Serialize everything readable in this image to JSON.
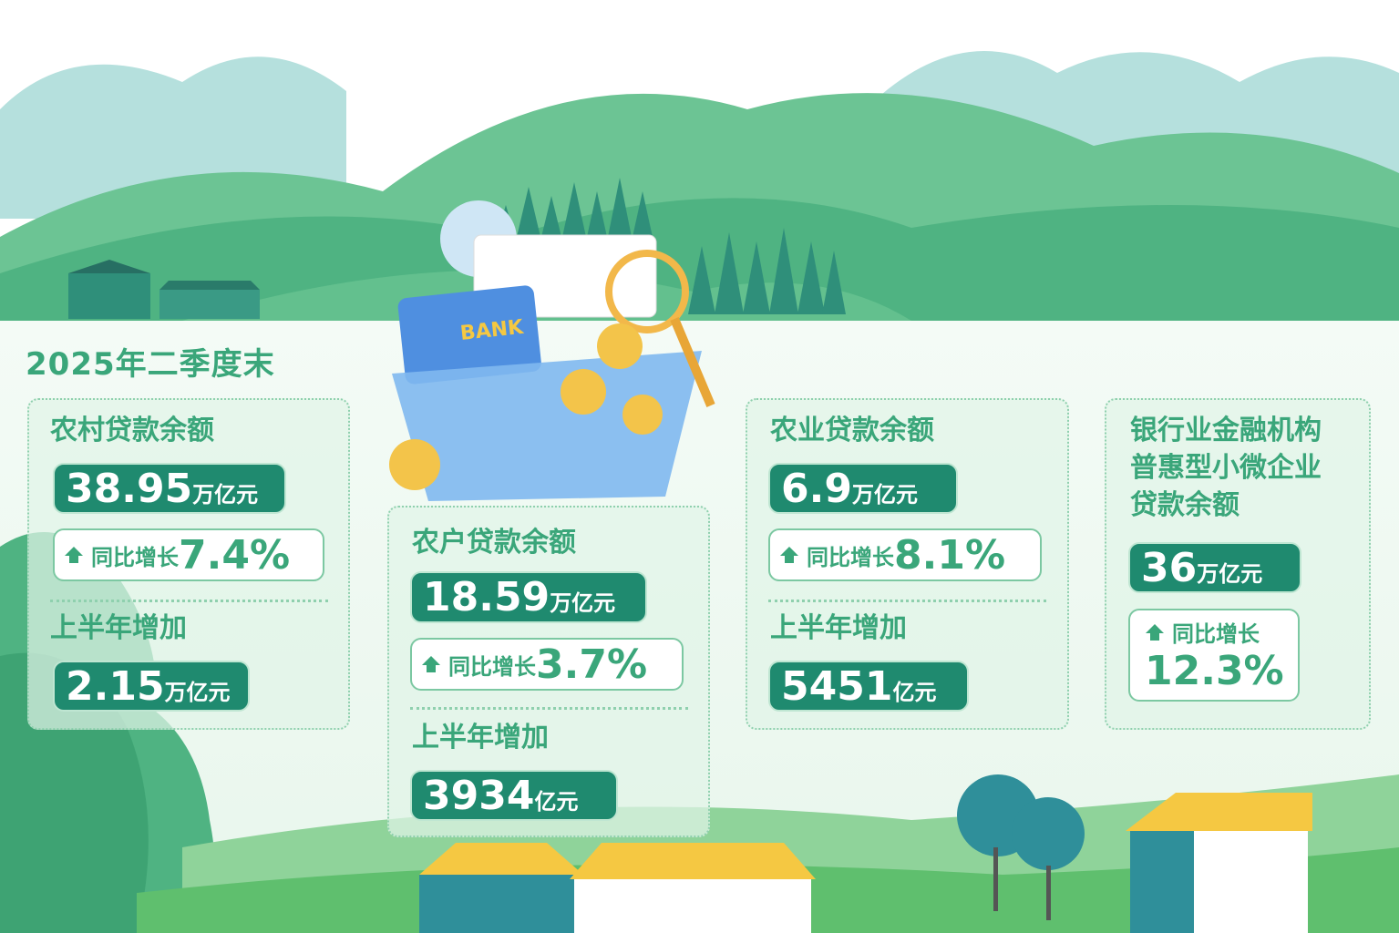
{
  "heading": "2025年二季度末",
  "illustration": {
    "card_text": "BANK"
  },
  "cards": [
    {
      "label": "农村贷款余额",
      "value": "38.95",
      "unit": "万亿元",
      "growth_label": "同比增长",
      "growth": "7.4%",
      "half_label": "上半年增加",
      "half_value": "2.15",
      "half_unit": "万亿元"
    },
    {
      "label": "农户贷款余额",
      "value": "18.59",
      "unit": "万亿元",
      "growth_label": "同比增长",
      "growth": "3.7%",
      "half_label": "上半年增加",
      "half_value": "3934",
      "half_unit": "亿元"
    },
    {
      "label": "农业贷款余额",
      "value": "6.9",
      "unit": "万亿元",
      "growth_label": "同比增长",
      "growth": "8.1%",
      "half_label": "上半年增加",
      "half_value": "5451",
      "half_unit": "亿元"
    },
    {
      "label_lines": [
        "银行业金融机构",
        "普惠型小微企业",
        "贷款余额"
      ],
      "value": "36",
      "unit": "万亿元",
      "growth_label": "同比增长",
      "growth": "12.3%"
    }
  ],
  "colors": {
    "accent": "#3aa67a",
    "pill": "#1f8a6f",
    "sky_hill": "#a8dcd8",
    "hill": "#5fbf8c"
  }
}
